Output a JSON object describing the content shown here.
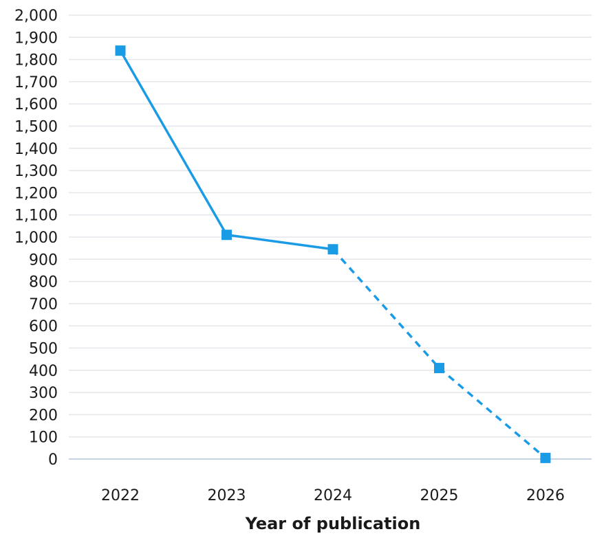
{
  "chart_data": {
    "type": "line",
    "title": "",
    "xlabel": "Year of publication",
    "ylabel": "",
    "categories": [
      "2022",
      "2023",
      "2024",
      "2025",
      "2026"
    ],
    "series": [
      {
        "values": [
          1840,
          1010,
          945,
          410,
          5
        ],
        "color": "#1a9be6",
        "marker": "square",
        "line_style_by_segment": [
          "solid",
          "solid",
          "dashed",
          "dashed"
        ]
      }
    ],
    "ylim": [
      0,
      2000
    ],
    "yticks": [
      0,
      100,
      200,
      300,
      400,
      500,
      600,
      700,
      800,
      900,
      1000,
      1100,
      1200,
      1300,
      1400,
      1500,
      1600,
      1700,
      1800,
      1900,
      2000
    ],
    "ytick_labels": [
      "0",
      "100",
      "200",
      "300",
      "400",
      "500",
      "600",
      "700",
      "800",
      "900",
      "1,000",
      "1,100",
      "1,200",
      "1,300",
      "1,400",
      "1,500",
      "1,600",
      "1,700",
      "1,800",
      "1,900",
      "2,000"
    ],
    "grid": true,
    "legend": "none"
  }
}
